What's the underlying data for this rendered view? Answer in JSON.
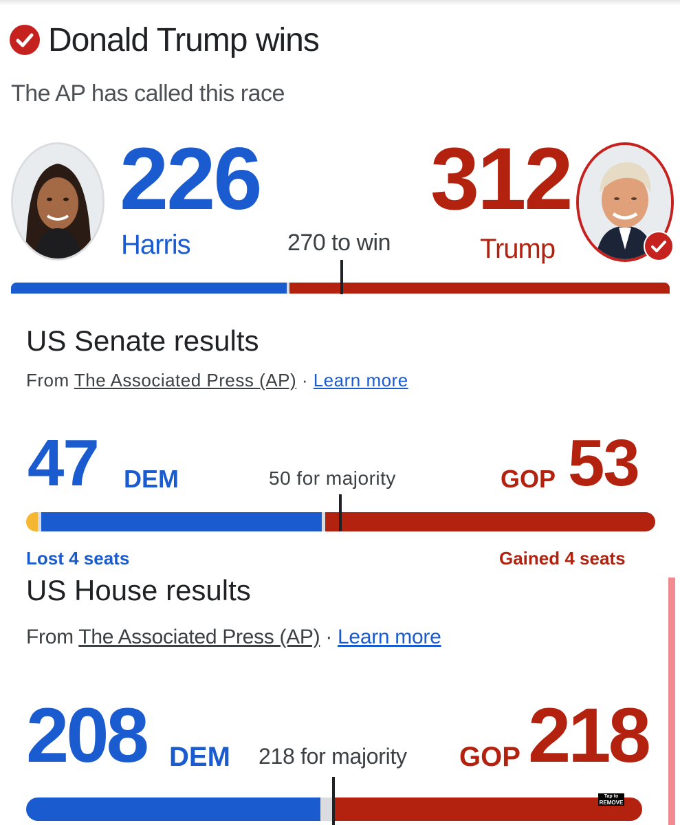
{
  "headline": {
    "title": "Donald Trump wins",
    "subtitle": "The AP has called this race"
  },
  "presidential": {
    "harris": {
      "name": "Harris",
      "votes": "226",
      "color": "#1a5ccf",
      "votes_value": 226
    },
    "trump": {
      "name": "Trump",
      "votes": "312",
      "color": "#b3220e",
      "votes_value": 312
    },
    "threshold_label": "270 to win",
    "threshold_value": 270
  },
  "senate": {
    "title": "US Senate results",
    "source_prefix": "From ",
    "source_name": "The Associated Press (AP)",
    "separator": " · ",
    "learn_more": "Learn more",
    "dem_count": "47",
    "dem_label": "DEM",
    "gop_count": "53",
    "gop_label": "GOP",
    "majority_label": "50 for majority",
    "dem_change": "Lost 4 seats",
    "gop_change": "Gained 4 seats",
    "independent_color": "#f5b731"
  },
  "house": {
    "title": "US House results",
    "source_prefix": "From ",
    "source_name": "The Associated Press (AP)",
    "separator": " · ",
    "learn_more": "Learn more",
    "dem_count": "208",
    "dem_label": "DEM",
    "gop_count": "218",
    "gop_label": "GOP",
    "majority_label": "218 for majority"
  },
  "overlay_badge": {
    "line1": "Tap to",
    "line2": "REMOVE"
  },
  "colors": {
    "dem": "#1a5ccf",
    "gop": "#b3220e",
    "uncalled": "#dadce0"
  },
  "icons": {
    "win_check": "check-circle-icon",
    "trump_check": "check-circle-icon"
  }
}
